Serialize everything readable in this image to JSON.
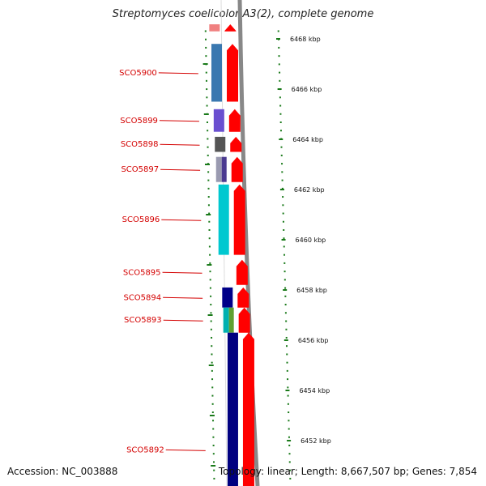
{
  "title": "Streptomyces coelicolor A3(2), complete genome",
  "footer": {
    "accession": "Accession: NC_003888",
    "summary": "Topology: linear; Length: 8,667,507 bp; Genes: 7,854"
  },
  "colors": {
    "gene_arrow": "#ff0000",
    "label": "#d40000",
    "tick": "#1a7a1a",
    "axis": "#888888"
  },
  "scale": {
    "unit": "kbp",
    "ticks": [
      {
        "value": 6468,
        "label": "6468 kbp"
      },
      {
        "value": 6466,
        "label": "6466 kbp"
      },
      {
        "value": 6464,
        "label": "6464 kbp"
      },
      {
        "value": 6462,
        "label": "6462 kbp"
      },
      {
        "value": 6460,
        "label": "6460 kbp"
      },
      {
        "value": 6458,
        "label": "6458 kbp"
      },
      {
        "value": 6456,
        "label": "6456 kbp"
      },
      {
        "value": 6454,
        "label": "6454 kbp"
      },
      {
        "value": 6452,
        "label": "6452 kbp"
      }
    ]
  },
  "genes": [
    {
      "label": "",
      "start": 6468.3,
      "end": 6469.0,
      "color": "#f08080"
    },
    {
      "label": "SCO5900",
      "start": 6465.5,
      "end": 6467.8,
      "color": "#3a78b0"
    },
    {
      "label": "SCO5899",
      "start": 6464.3,
      "end": 6465.2,
      "color": "#6a4fd0"
    },
    {
      "label": "SCO5898",
      "start": 6463.5,
      "end": 6464.1,
      "color": "#555555"
    },
    {
      "label": "SCO5897",
      "start": 6462.3,
      "end": 6463.3,
      "color": "#9a9ab0",
      "color2": "#4a3a90"
    },
    {
      "label": "SCO5896",
      "start": 6459.4,
      "end": 6462.2,
      "color": "#00c8d0"
    },
    {
      "label": "SCO5895",
      "start": 6458.2,
      "end": 6459.2,
      "color": ""
    },
    {
      "label": "SCO5894",
      "start": 6457.3,
      "end": 6458.1,
      "color": "#000088"
    },
    {
      "label": "SCO5893",
      "start": 6456.3,
      "end": 6457.3,
      "color": "#00b0b0",
      "color2": "#60a030"
    },
    {
      "label": "SCO5892",
      "start": 6450.0,
      "end": 6456.3,
      "color": "#000080"
    }
  ]
}
